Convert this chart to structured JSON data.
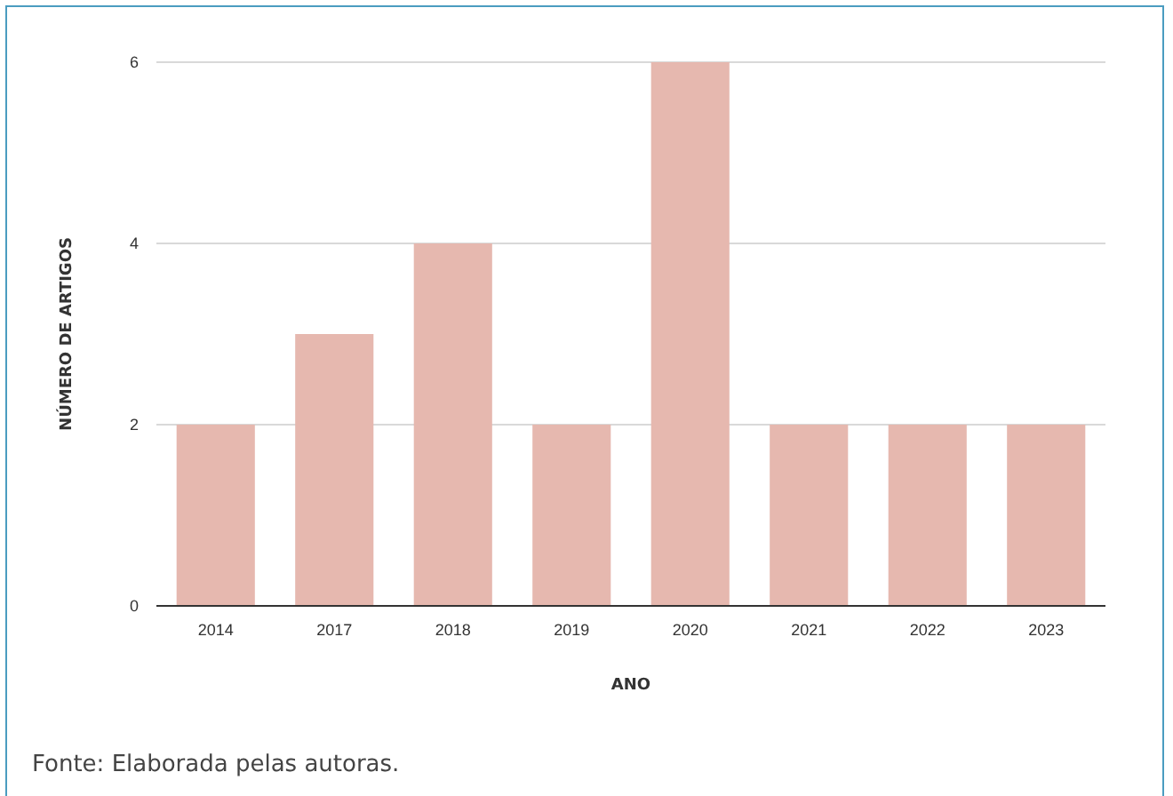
{
  "chart_data": {
    "type": "bar",
    "xlabel": "ANO",
    "ylabel": "NÚMERO DE ARTIGOS",
    "categories": [
      "2014",
      "2017",
      "2018",
      "2019",
      "2020",
      "2021",
      "2022",
      "2023"
    ],
    "values": [
      2,
      3,
      4,
      2,
      6,
      2,
      2,
      2
    ],
    "color": "#e6b8af",
    "ylim": [
      0,
      6
    ],
    "yticks": [
      0,
      2,
      4,
      6
    ],
    "grid": "y",
    "annotations": [
      "Fonte: Elaborada pelas autoras."
    ]
  }
}
